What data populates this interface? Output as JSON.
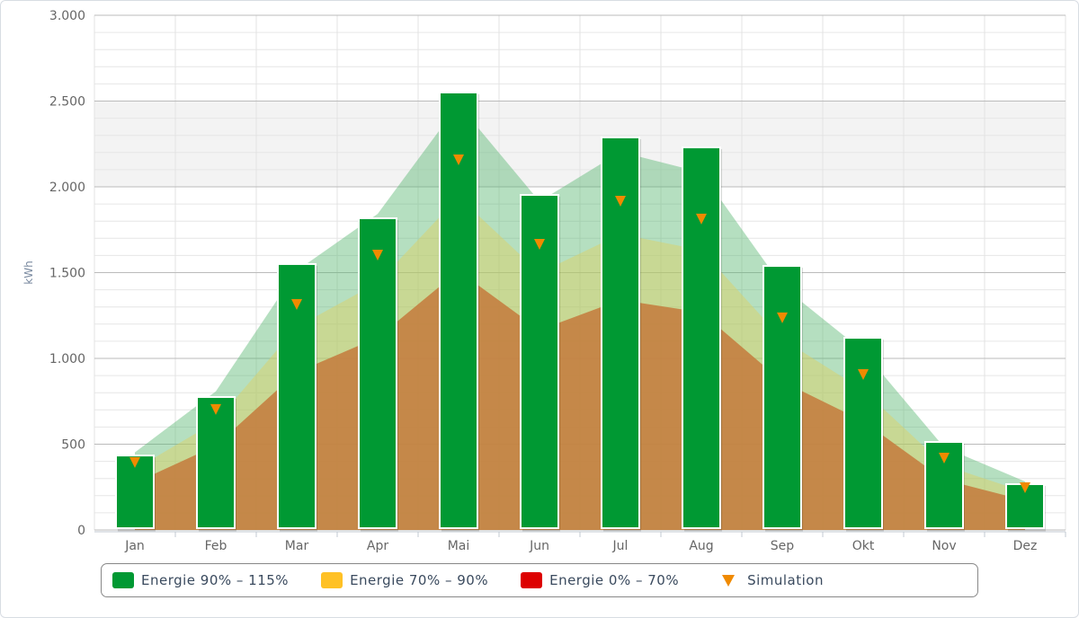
{
  "chart_data": {
    "type": "bar",
    "ylabel": "kWh",
    "ylim": [
      0,
      3000
    ],
    "yticks": [
      0,
      500,
      1000,
      1500,
      2000,
      2500,
      3000
    ],
    "ytick_labels": [
      "0",
      "500",
      "1.000",
      "1.500",
      "2.000",
      "2.500",
      "3.000"
    ],
    "categories": [
      "Jan",
      "Feb",
      "Mar",
      "Apr",
      "Mai",
      "Jun",
      "Jul",
      "Aug",
      "Sep",
      "Okt",
      "Nov",
      "Dez"
    ],
    "series": [
      {
        "name": "Energie 90% – 115%",
        "type": "bar",
        "color": "#009933",
        "values": [
          434,
          775,
          1550,
          1817,
          2550,
          1953,
          2288,
          2230,
          1539,
          1120,
          513,
          267
        ]
      },
      {
        "name": "Simulation",
        "type": "marker",
        "color": "#f08a00",
        "values": [
          393,
          702,
          1314,
          1602,
          2157,
          1665,
          1916,
          1812,
          1236,
          906,
          419,
          246
        ]
      }
    ],
    "bands": [
      {
        "name": "115%",
        "factor": 1.15,
        "color": "#5cb874"
      },
      {
        "name": "90%",
        "factor": 0.9,
        "color": "#e0d060"
      },
      {
        "name": "70%",
        "factor": 0.7,
        "color": "#c47a3c"
      }
    ],
    "plot_band": [
      2000,
      2500
    ],
    "grid": true,
    "legend_position": "bottom",
    "legend": [
      {
        "label": "Energie 90% – 115%",
        "color": "#009933"
      },
      {
        "label": "Energie 70% – 90%",
        "color": "#ffc125"
      },
      {
        "label": "Energie 0% – 70%",
        "color": "#dd0000"
      },
      {
        "label": "Simulation",
        "color": "#f08a00"
      }
    ]
  }
}
